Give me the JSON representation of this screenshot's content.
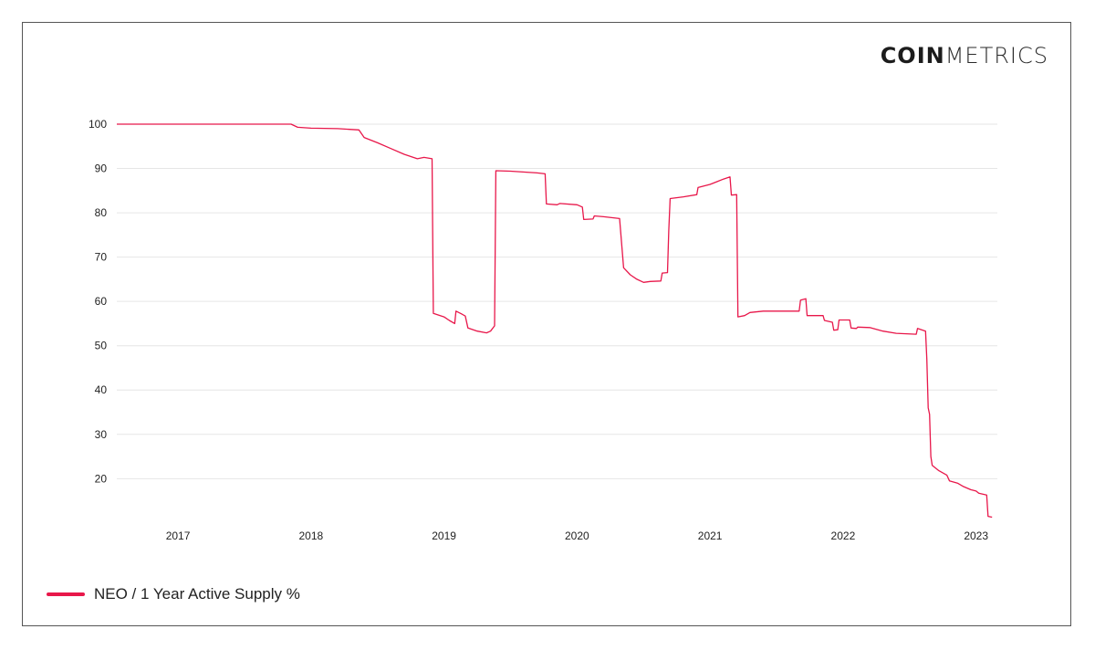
{
  "logo": {
    "bold": "COIN",
    "light": "METRICS"
  },
  "colors": {
    "series": "#e8174a",
    "grid": "#e6e6e6",
    "frame": "#555555"
  },
  "legend": {
    "label": "NEO / 1 Year Active Supply %"
  },
  "chart_data": {
    "type": "line",
    "title": "",
    "xlabel": "",
    "ylabel": "",
    "grid": true,
    "legend_position": "bottom-left",
    "xlim": [
      2016.54,
      2023.16
    ],
    "ylim": [
      11,
      100
    ],
    "x_ticks": [
      {
        "value": 2017,
        "label": "2017"
      },
      {
        "value": 2018,
        "label": "2018"
      },
      {
        "value": 2019,
        "label": "2019"
      },
      {
        "value": 2020,
        "label": "2020"
      },
      {
        "value": 2021,
        "label": "2021"
      },
      {
        "value": 2022,
        "label": "2022"
      },
      {
        "value": 2023,
        "label": "2023"
      }
    ],
    "y_ticks": [
      20,
      30,
      40,
      50,
      60,
      70,
      80,
      90,
      100
    ],
    "series": [
      {
        "name": "NEO / 1 Year Active Supply %",
        "points": [
          [
            2016.54,
            100
          ],
          [
            2017.85,
            100
          ],
          [
            2017.9,
            99.3
          ],
          [
            2018.0,
            99.1
          ],
          [
            2018.2,
            99.0
          ],
          [
            2018.36,
            98.7
          ],
          [
            2018.4,
            97.0
          ],
          [
            2018.5,
            95.8
          ],
          [
            2018.6,
            94.5
          ],
          [
            2018.7,
            93.2
          ],
          [
            2018.8,
            92.2
          ],
          [
            2018.85,
            92.5
          ],
          [
            2018.91,
            92.2
          ],
          [
            2018.92,
            57.3
          ],
          [
            2019.0,
            56.5
          ],
          [
            2019.04,
            55.7
          ],
          [
            2019.08,
            55.0
          ],
          [
            2019.09,
            57.8
          ],
          [
            2019.13,
            57.2
          ],
          [
            2019.16,
            56.7
          ],
          [
            2019.18,
            54.0
          ],
          [
            2019.25,
            53.3
          ],
          [
            2019.32,
            52.9
          ],
          [
            2019.35,
            53.3
          ],
          [
            2019.38,
            54.5
          ],
          [
            2019.39,
            89.5
          ],
          [
            2019.5,
            89.4
          ],
          [
            2019.7,
            89.0
          ],
          [
            2019.76,
            88.8
          ],
          [
            2019.77,
            82.0
          ],
          [
            2019.85,
            81.8
          ],
          [
            2019.87,
            82.1
          ],
          [
            2020.0,
            81.8
          ],
          [
            2020.04,
            81.3
          ],
          [
            2020.05,
            78.5
          ],
          [
            2020.12,
            78.6
          ],
          [
            2020.13,
            79.3
          ],
          [
            2020.2,
            79.1
          ],
          [
            2020.32,
            78.7
          ],
          [
            2020.35,
            67.6
          ],
          [
            2020.4,
            66.0
          ],
          [
            2020.45,
            65.0
          ],
          [
            2020.5,
            64.3
          ],
          [
            2020.55,
            64.5
          ],
          [
            2020.63,
            64.6
          ],
          [
            2020.64,
            66.4
          ],
          [
            2020.68,
            66.5
          ],
          [
            2020.69,
            76.0
          ],
          [
            2020.7,
            83.2
          ],
          [
            2020.8,
            83.6
          ],
          [
            2020.9,
            84.1
          ],
          [
            2020.91,
            85.7
          ],
          [
            2021.0,
            86.4
          ],
          [
            2021.05,
            87.0
          ],
          [
            2021.1,
            87.6
          ],
          [
            2021.15,
            88.1
          ],
          [
            2021.16,
            84.0
          ],
          [
            2021.2,
            84.1
          ],
          [
            2021.21,
            56.5
          ],
          [
            2021.26,
            56.8
          ],
          [
            2021.3,
            57.5
          ],
          [
            2021.4,
            57.8
          ],
          [
            2021.67,
            57.8
          ],
          [
            2021.68,
            60.3
          ],
          [
            2021.72,
            60.6
          ],
          [
            2021.73,
            56.8
          ],
          [
            2021.85,
            56.8
          ],
          [
            2021.86,
            55.7
          ],
          [
            2021.92,
            55.3
          ],
          [
            2021.93,
            53.5
          ],
          [
            2021.96,
            53.6
          ],
          [
            2021.97,
            55.8
          ],
          [
            2022.05,
            55.8
          ],
          [
            2022.06,
            54.0
          ],
          [
            2022.1,
            53.9
          ],
          [
            2022.11,
            54.2
          ],
          [
            2022.2,
            54.1
          ],
          [
            2022.3,
            53.3
          ],
          [
            2022.4,
            52.8
          ],
          [
            2022.55,
            52.6
          ],
          [
            2022.56,
            53.9
          ],
          [
            2022.62,
            53.3
          ],
          [
            2022.63,
            47.0
          ],
          [
            2022.64,
            36.0
          ],
          [
            2022.65,
            34.5
          ],
          [
            2022.66,
            25.0
          ],
          [
            2022.67,
            23.0
          ],
          [
            2022.72,
            21.8
          ],
          [
            2022.78,
            20.8
          ],
          [
            2022.8,
            19.5
          ],
          [
            2022.86,
            19.0
          ],
          [
            2022.9,
            18.3
          ],
          [
            2022.96,
            17.5
          ],
          [
            2023.0,
            17.2
          ],
          [
            2023.02,
            16.7
          ],
          [
            2023.08,
            16.3
          ],
          [
            2023.09,
            11.5
          ],
          [
            2023.12,
            11.3
          ]
        ]
      }
    ]
  }
}
